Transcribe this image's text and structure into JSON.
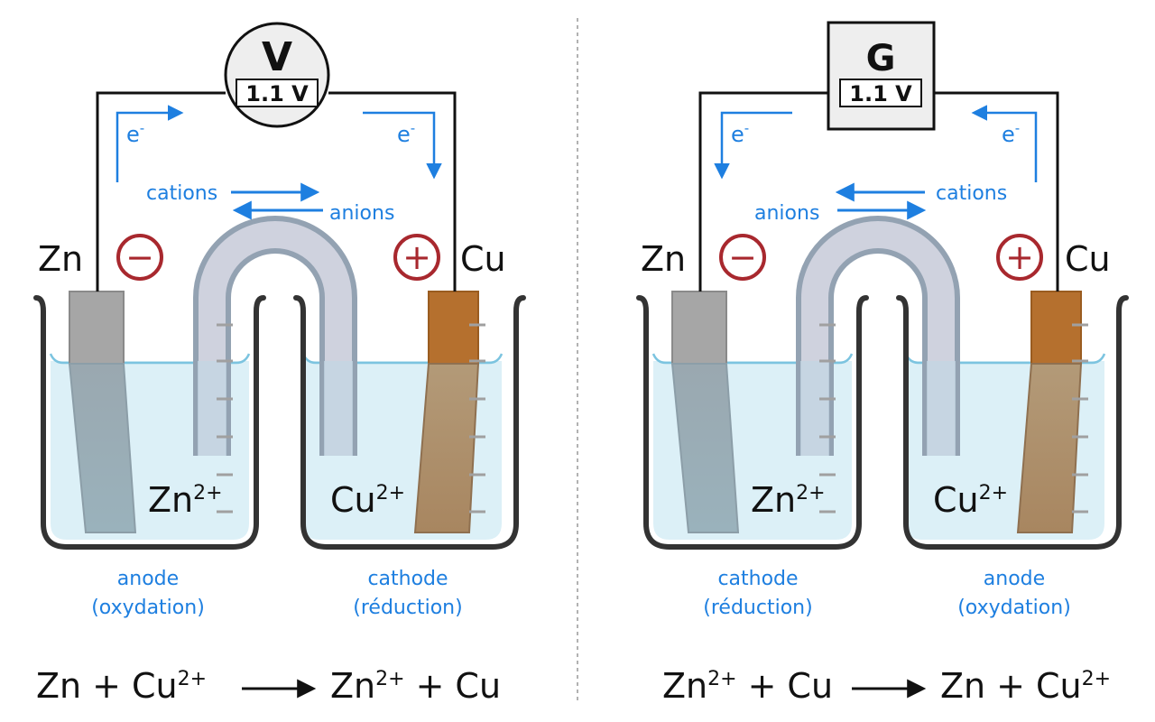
{
  "left_cell": {
    "meter_symbol": "V",
    "meter_reading": "1.1 V",
    "left_electrode": "Zn",
    "right_electrode": "Cu",
    "left_sign": "−",
    "right_sign": "+",
    "electron_left": "e",
    "electron_right": "e",
    "electron_sup": "-",
    "cations": "cations",
    "anions": "anions",
    "left_ion": "Zn",
    "left_ion_charge": "2+",
    "right_ion": "Cu",
    "right_ion_charge": "2+",
    "left_role": "anode",
    "left_process": "(oxydation)",
    "right_role": "cathode",
    "right_process": "(réduction)",
    "equation": {
      "r1": "Zn",
      "plus1": "+",
      "r2": "Cu",
      "r2_charge": "2+",
      "p1": "Zn",
      "p1_charge": "2+",
      "plus2": "+",
      "p2": "Cu"
    }
  },
  "right_cell": {
    "meter_symbol": "G",
    "meter_reading": "1.1 V",
    "left_electrode": "Zn",
    "right_electrode": "Cu",
    "left_sign": "−",
    "right_sign": "+",
    "electron_left": "e",
    "electron_right": "e",
    "electron_sup": "-",
    "cations": "cations",
    "anions": "anions",
    "left_ion": "Zn",
    "left_ion_charge": "2+",
    "right_ion": "Cu",
    "right_ion_charge": "2+",
    "left_role": "cathode",
    "left_process": "(réduction)",
    "right_role": "anode",
    "right_process": "(oxydation)",
    "equation": {
      "r1": "Zn",
      "r1_charge": "2+",
      "plus1": "+",
      "r2": "Cu",
      "p1": "Zn",
      "plus2": "+",
      "p2": "Cu",
      "p2_charge": "2+"
    }
  },
  "colors": {
    "wire": "#111111",
    "electron_blue": "#1e7fe0",
    "sign_red": "#a8282e",
    "solution": "#dcf0f7",
    "water_line": "#7cc4e0",
    "zinc": "#a6a6a6",
    "copper": "#b5702e",
    "bridge": "#c4c8d4",
    "beaker": "#333333"
  }
}
